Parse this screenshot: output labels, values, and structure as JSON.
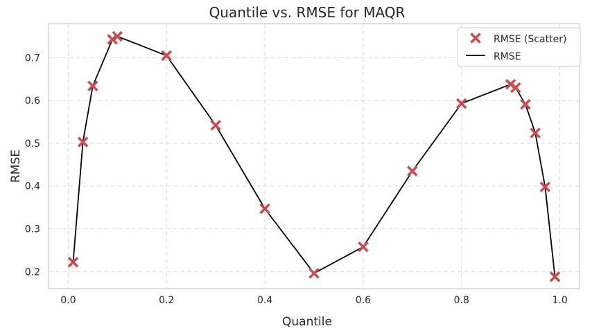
{
  "chart_data": {
    "type": "line",
    "title": "Quantile vs. RMSE for MAQR",
    "xlabel": "Quantile",
    "ylabel": "RMSE",
    "xlim": [
      -0.04,
      1.04
    ],
    "ylim": [
      0.16,
      0.78
    ],
    "xticks": [
      0.0,
      0.2,
      0.4,
      0.6,
      0.8,
      1.0
    ],
    "xtick_labels": [
      "0.0",
      "0.2",
      "0.4",
      "0.6",
      "0.8",
      "1.0"
    ],
    "yticks": [
      0.2,
      0.3,
      0.4,
      0.5,
      0.6,
      0.7
    ],
    "ytick_labels": [
      "0.2",
      "0.3",
      "0.4",
      "0.5",
      "0.6",
      "0.7"
    ],
    "grid": true,
    "legend_position": "top-right",
    "series": [
      {
        "name": "RMSE (Scatter)",
        "kind": "scatter",
        "marker": "x",
        "color": "#c44e52",
        "x": [
          0.01,
          0.03,
          0.05,
          0.09,
          0.1,
          0.2,
          0.3,
          0.4,
          0.5,
          0.6,
          0.7,
          0.8,
          0.9,
          0.91,
          0.93,
          0.95,
          0.97,
          0.99
        ],
        "y": [
          0.222,
          0.503,
          0.634,
          0.743,
          0.75,
          0.705,
          0.542,
          0.347,
          0.196,
          0.258,
          0.435,
          0.593,
          0.638,
          0.63,
          0.591,
          0.524,
          0.398,
          0.188
        ]
      },
      {
        "name": "RMSE",
        "kind": "line",
        "color": "#000000",
        "x": [
          0.01,
          0.03,
          0.05,
          0.09,
          0.1,
          0.2,
          0.3,
          0.4,
          0.5,
          0.6,
          0.7,
          0.8,
          0.9,
          0.91,
          0.93,
          0.95,
          0.97,
          0.99
        ],
        "y": [
          0.222,
          0.503,
          0.634,
          0.743,
          0.75,
          0.705,
          0.542,
          0.347,
          0.196,
          0.258,
          0.435,
          0.593,
          0.638,
          0.63,
          0.591,
          0.524,
          0.398,
          0.188
        ]
      }
    ]
  }
}
